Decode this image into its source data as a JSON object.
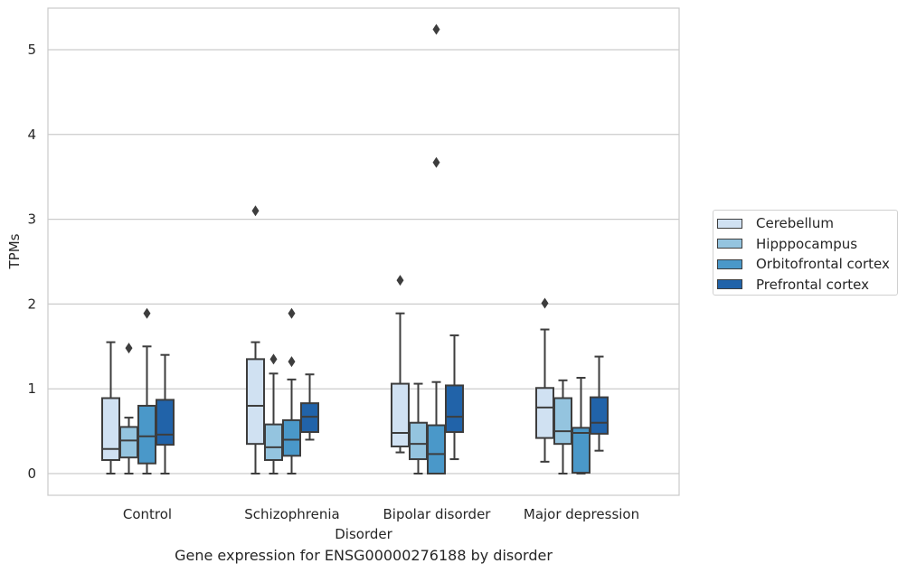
{
  "chart_data": {
    "type": "boxplot",
    "xlabel": "Disorder",
    "ylabel": "TPMs",
    "ylim": [
      -0.25,
      5.5
    ],
    "yticks": [
      0,
      1,
      2,
      3,
      4,
      5
    ],
    "grid": "horizontal",
    "legend_placement": "outside-right",
    "categories": [
      "Control",
      "Schizophrenia",
      "Bipolar disorder",
      "Major depression"
    ],
    "series": [
      {
        "name": "Cerebellum",
        "color": "#d0e1f2",
        "boxes": [
          {
            "whisker_low": 0.0,
            "q1": 0.16,
            "median": 0.29,
            "q3": 0.89,
            "whisker_high": 1.55,
            "outliers": []
          },
          {
            "whisker_low": 0.0,
            "q1": 0.35,
            "median": 0.8,
            "q3": 1.35,
            "whisker_high": 1.55,
            "outliers": [
              3.1
            ]
          },
          {
            "whisker_low": 0.25,
            "q1": 0.32,
            "median": 0.48,
            "q3": 1.06,
            "whisker_high": 1.89,
            "outliers": [
              2.28
            ]
          },
          {
            "whisker_low": 0.14,
            "q1": 0.42,
            "median": 0.78,
            "q3": 1.01,
            "whisker_high": 1.7,
            "outliers": [
              2.01
            ]
          }
        ]
      },
      {
        "name": "Hipppocampus",
        "color": "#94c4df",
        "boxes": [
          {
            "whisker_low": 0.0,
            "q1": 0.19,
            "median": 0.39,
            "q3": 0.55,
            "whisker_high": 0.66,
            "outliers": [
              1.48
            ]
          },
          {
            "whisker_low": 0.0,
            "q1": 0.16,
            "median": 0.31,
            "q3": 0.58,
            "whisker_high": 1.18,
            "outliers": [
              1.35
            ]
          },
          {
            "whisker_low": 0.0,
            "q1": 0.17,
            "median": 0.35,
            "q3": 0.6,
            "whisker_high": 1.06,
            "outliers": []
          },
          {
            "whisker_low": 0.0,
            "q1": 0.35,
            "median": 0.5,
            "q3": 0.89,
            "whisker_high": 1.1,
            "outliers": []
          }
        ]
      },
      {
        "name": "Orbitofrontal cortex",
        "color": "#4a98c9",
        "boxes": [
          {
            "whisker_low": 0.0,
            "q1": 0.12,
            "median": 0.44,
            "q3": 0.8,
            "whisker_high": 1.5,
            "outliers": [
              1.89
            ]
          },
          {
            "whisker_low": 0.0,
            "q1": 0.21,
            "median": 0.4,
            "q3": 0.63,
            "whisker_high": 1.11,
            "outliers": [
              1.32,
              1.89
            ]
          },
          {
            "whisker_low": 0.0,
            "q1": 0.0,
            "median": 0.23,
            "q3": 0.57,
            "whisker_high": 1.08,
            "outliers": [
              3.67,
              5.24
            ]
          },
          {
            "whisker_low": 0.0,
            "q1": 0.01,
            "median": 0.48,
            "q3": 0.54,
            "whisker_high": 1.13,
            "outliers": []
          }
        ]
      },
      {
        "name": "Prefrontal cortex",
        "color": "#2163a9",
        "boxes": [
          {
            "whisker_low": 0.0,
            "q1": 0.34,
            "median": 0.46,
            "q3": 0.87,
            "whisker_high": 1.4,
            "outliers": []
          },
          {
            "whisker_low": 0.4,
            "q1": 0.49,
            "median": 0.67,
            "q3": 0.83,
            "whisker_high": 1.17,
            "outliers": []
          },
          {
            "whisker_low": 0.17,
            "q1": 0.49,
            "median": 0.67,
            "q3": 1.04,
            "whisker_high": 1.63,
            "outliers": []
          },
          {
            "whisker_low": 0.27,
            "q1": 0.47,
            "median": 0.6,
            "q3": 0.9,
            "whisker_high": 1.38,
            "outliers": []
          }
        ]
      }
    ],
    "caption": "Gene expression for ENSG00000276188 by disorder"
  }
}
